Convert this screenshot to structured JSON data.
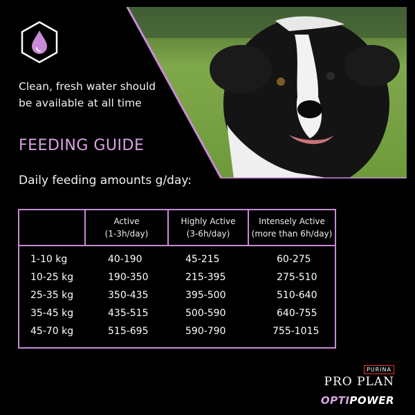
{
  "water": {
    "icon": "water-drop-icon",
    "text_line1": "Clean, fresh water should",
    "text_line2": "be available at all time"
  },
  "photo": {
    "subject": "dog-photo"
  },
  "feeding": {
    "title": "FEEDING GUIDE",
    "subtitle": "Daily feeding amounts g/day:"
  },
  "table": {
    "headers": [
      {
        "line1": "Active",
        "line2": "(1-3h/day)"
      },
      {
        "line1": "Highly Active",
        "line2": "(3-6h/day)"
      },
      {
        "line1": "Intensely Active",
        "line2": "(more than 6h/day)"
      }
    ],
    "rows": [
      {
        "weight": "1-10 kg",
        "active": "40-190",
        "highly": "45-215",
        "intensely": "60-275"
      },
      {
        "weight": "10-25 kg",
        "active": "190-350",
        "highly": "215-395",
        "intensely": "275-510"
      },
      {
        "weight": "25-35 kg",
        "active": "350-435",
        "highly": "395-500",
        "intensely": "510-640"
      },
      {
        "weight": "35-45 kg",
        "active": "435-515",
        "highly": "500-590",
        "intensely": "640-755"
      },
      {
        "weight": "45-70 kg",
        "active": "515-695",
        "highly": "590-790",
        "intensely": "755-1015"
      }
    ]
  },
  "brand": {
    "purina": "PURINA",
    "proplan": "PRO PLAN",
    "opti": "OPTI",
    "power": "POWER"
  },
  "colors": {
    "accent": "#c98bd8",
    "title": "#d9a5e3",
    "background": "#000000"
  }
}
